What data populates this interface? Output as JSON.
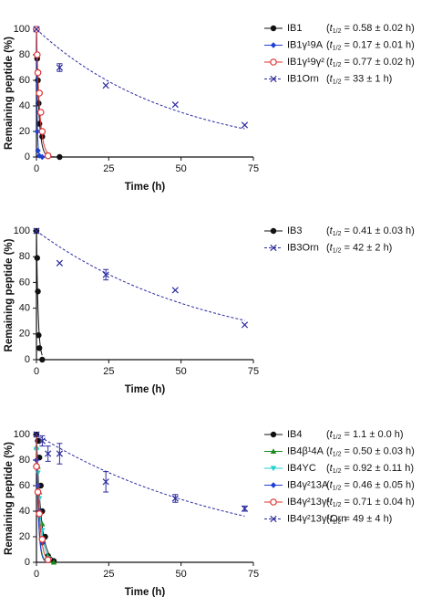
{
  "chart_data": [
    {
      "type": "scatter",
      "x_label": "Time (h)",
      "y_label": "Remaining peptide (%)",
      "xlim": [
        0,
        75
      ],
      "xticks": [
        0,
        25,
        50,
        75
      ],
      "ylim": [
        0,
        100
      ],
      "yticks": [
        0,
        20,
        40,
        60,
        80,
        100
      ],
      "series": [
        {
          "name": "IB1",
          "color": "#111111",
          "marker": "circle",
          "line_style": "solid",
          "half_life": 0.58,
          "note": {
            "pre": "(",
            "t": "t",
            "sub": "1/2",
            "rest": " = 0.58 ± 0.02 h)"
          },
          "x": [
            0,
            0.25,
            0.5,
            0.75,
            1,
            2,
            4,
            8
          ],
          "values": [
            100,
            77,
            60,
            42,
            26,
            16,
            1,
            0
          ]
        },
        {
          "name": "IB1γ¹9A",
          "color": "#1f3fd0",
          "marker": "diamond",
          "line_style": "solid",
          "half_life": 0.17,
          "note": {
            "pre": "(",
            "t": "t",
            "sub": "1/2",
            "rest": " = 0.17 ± 0.01 h)"
          },
          "x": [
            0,
            0.25,
            0.5,
            1,
            2
          ],
          "values": [
            100,
            20,
            5,
            1,
            0
          ]
        },
        {
          "name": "IB1γ¹9γ²",
          "color": "#e03030",
          "marker": "open-circle",
          "line_style": "solid",
          "half_life": 0.77,
          "note": {
            "pre": "(",
            "t": "t",
            "sub": "1/2",
            "rest": " = 0.77 ± 0.02 h)"
          },
          "x": [
            0,
            0.25,
            0.5,
            1,
            1.5,
            2,
            4
          ],
          "values": [
            100,
            80,
            66,
            50,
            35,
            20,
            1
          ]
        },
        {
          "name": "IB1Orn",
          "color": "#2a2aa0",
          "marker": "x",
          "line_style": "dashed",
          "half_life": 33,
          "note": {
            "pre": "(",
            "t": "t",
            "sub": "1/2",
            "rest": " = 33 ± 1 h)"
          },
          "x": [
            0,
            8,
            24,
            48,
            72
          ],
          "values": [
            100,
            70,
            56,
            41,
            25
          ],
          "errors": [
            null,
            3,
            null,
            null,
            null
          ]
        }
      ]
    },
    {
      "type": "scatter",
      "x_label": "Time (h)",
      "y_label": "Remaining peptide (%)",
      "xlim": [
        0,
        75
      ],
      "xticks": [
        0,
        25,
        50,
        75
      ],
      "ylim": [
        0,
        100
      ],
      "yticks": [
        0,
        20,
        40,
        60,
        80,
        100
      ],
      "series": [
        {
          "name": "IB3",
          "color": "#111111",
          "marker": "circle",
          "line_style": "solid",
          "half_life": 0.41,
          "note": {
            "pre": "(",
            "t": "t",
            "sub": "1/2",
            "rest": " = 0.41 ± 0.03 h)"
          },
          "x": [
            0,
            0.25,
            0.5,
            0.75,
            1,
            2
          ],
          "values": [
            100,
            79,
            53,
            19,
            9,
            0
          ]
        },
        {
          "name": "IB3Orn",
          "color": "#2a2aa0",
          "marker": "x",
          "line_style": "dashed",
          "half_life": 42,
          "note": {
            "pre": "(",
            "t": "t",
            "sub": "1/2",
            "rest": " = 42 ± 2 h)"
          },
          "x": [
            0,
            8,
            24,
            48,
            72
          ],
          "values": [
            100,
            75,
            66,
            54,
            27
          ],
          "errors": [
            null,
            null,
            4,
            null,
            null
          ]
        }
      ]
    },
    {
      "type": "scatter",
      "x_label": "Time (h)",
      "y_label": "Remaining peptide (%)",
      "xlim": [
        0,
        75
      ],
      "xticks": [
        0,
        25,
        50,
        75
      ],
      "ylim": [
        0,
        100
      ],
      "yticks": [
        0,
        20,
        40,
        60,
        80,
        100
      ],
      "series": [
        {
          "name": "IB4",
          "color": "#111111",
          "marker": "circle",
          "line_style": "solid",
          "half_life": 1.1,
          "note": {
            "pre": "(",
            "t": "t",
            "sub": "1/2",
            "rest": " = 1.1 ± 0.0 h)"
          },
          "x": [
            0,
            0.5,
            1,
            1.5,
            2,
            3,
            4,
            6
          ],
          "values": [
            100,
            95,
            82,
            60,
            40,
            20,
            5,
            1
          ]
        },
        {
          "name": "IB4β¹4A",
          "color": "#1a8a1a",
          "marker": "triangle",
          "line_style": "solid",
          "half_life": 0.5,
          "note": {
            "pre": "(",
            "t": "t",
            "sub": "1/2",
            "rest": " = 0.50 ± 0.03 h)"
          },
          "x": [
            0,
            0.5,
            1,
            2,
            4,
            6
          ],
          "values": [
            90,
            75,
            55,
            30,
            5,
            0
          ]
        },
        {
          "name": "IB4YC",
          "color": "#20d0d0",
          "marker": "triangle-down",
          "line_style": "solid",
          "half_life": 0.92,
          "note": {
            "pre": "(",
            "t": "t",
            "sub": "1/2",
            "rest": " = 0.92 ± 0.11 h)"
          },
          "x": [
            0,
            0.5,
            1,
            2,
            4
          ],
          "values": [
            88,
            70,
            50,
            25,
            3
          ]
        },
        {
          "name": "IB4γ²13A",
          "color": "#1f3fd0",
          "marker": "diamond",
          "line_style": "solid",
          "half_life": 0.46,
          "note": {
            "pre": "(",
            "t": "t",
            "sub": "1/2",
            "rest": " = 0.46 ± 0.05 h)"
          },
          "x": [
            0,
            0.5,
            1,
            2,
            4
          ],
          "values": [
            80,
            60,
            40,
            15,
            2
          ]
        },
        {
          "name": "IB4γ²13γ¹",
          "color": "#e03030",
          "marker": "open-circle",
          "line_style": "solid",
          "half_life": 0.71,
          "note": {
            "pre": "(",
            "t": "t",
            "sub": "1/2",
            "rest": " = 0.71 ± 0.04 h)"
          },
          "x": [
            0,
            0.5,
            1,
            2,
            4
          ],
          "values": [
            75,
            55,
            38,
            18,
            2
          ]
        },
        {
          "name": "IB4γ²13γ¹Orn",
          "color": "#2a2aa0",
          "marker": "x",
          "line_style": "dashed",
          "half_life": 49,
          "note": {
            "pre": "(",
            "t": "t",
            "sub": "1/2",
            "rest": " = 49 ± 4 h)"
          },
          "x": [
            0,
            2,
            4,
            8,
            24,
            48,
            72
          ],
          "values": [
            100,
            95,
            85,
            85,
            63,
            50,
            42
          ],
          "errors": [
            null,
            4,
            6,
            8,
            8,
            3,
            2
          ]
        }
      ]
    }
  ]
}
